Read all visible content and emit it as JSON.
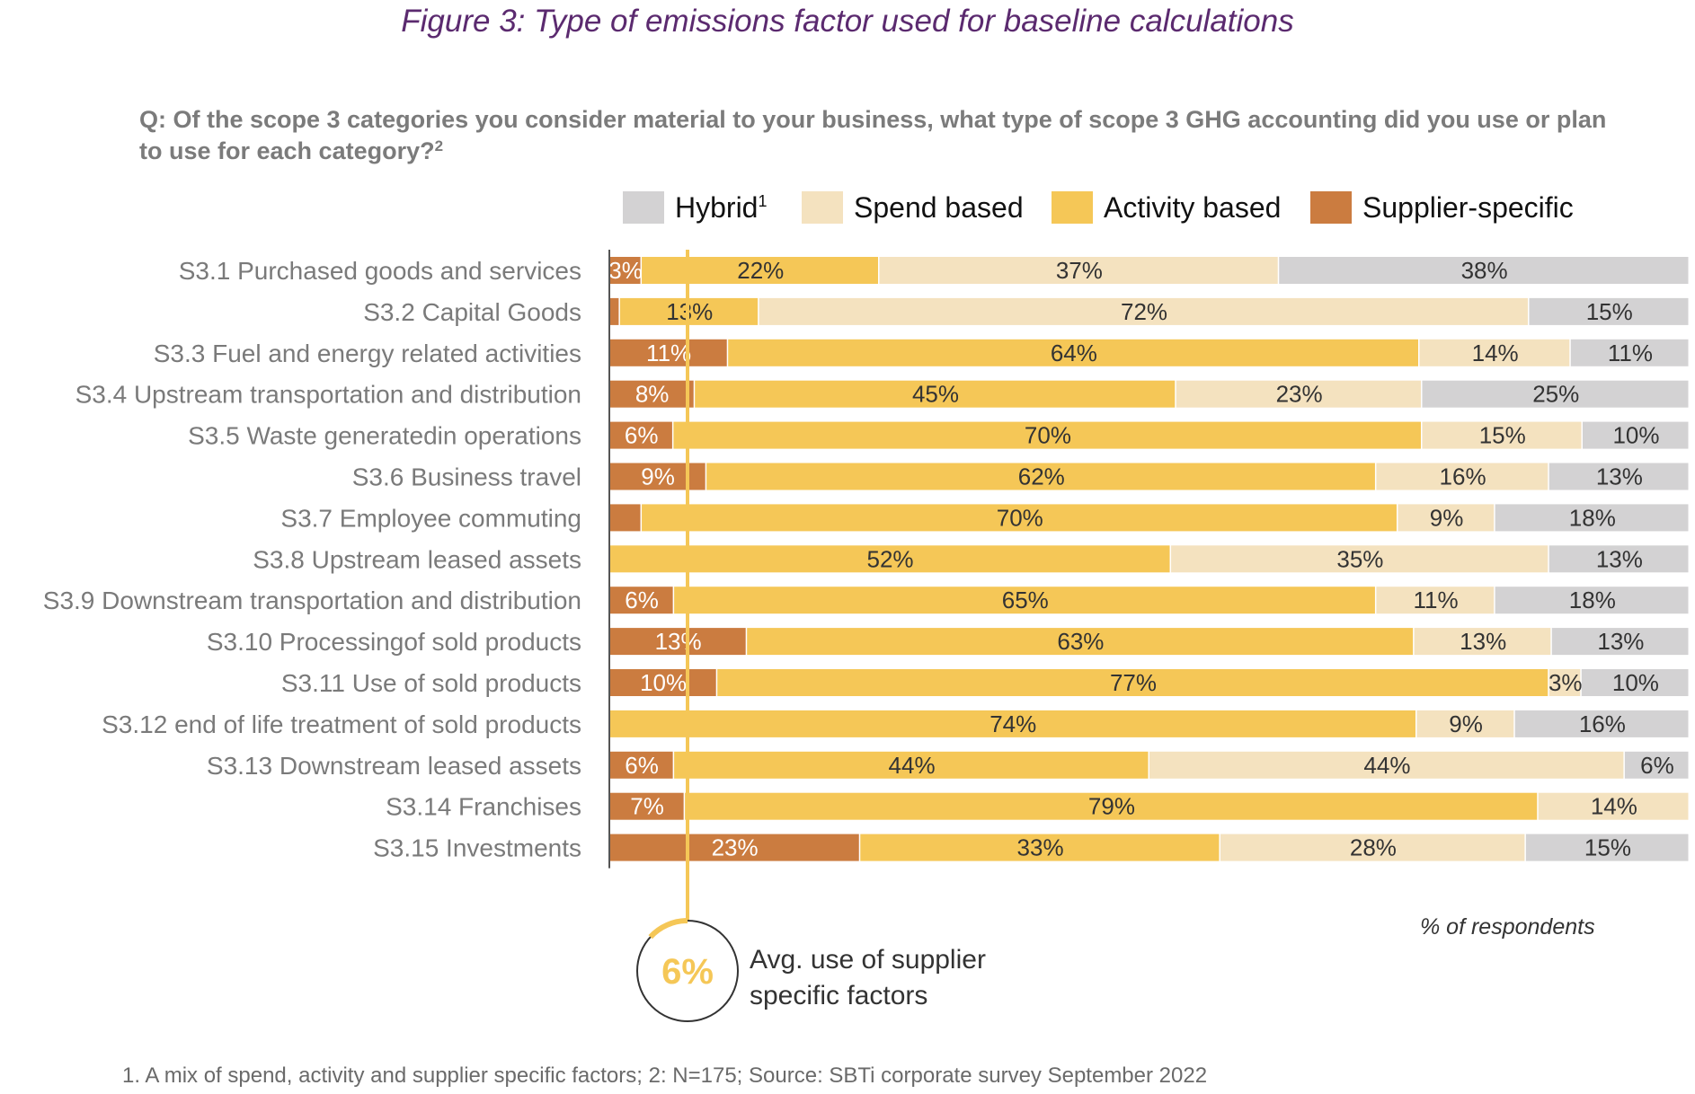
{
  "title": "Figure 3: Type of emissions factor used for baseline calculations",
  "question": {
    "text": "Q: Of the scope 3 categories you consider material to your business, what type of scope 3 GHG accounting did you use or plan to use for each category?",
    "footnote_mark": "2"
  },
  "legend": [
    {
      "key": "hybrid",
      "label": "Hybrid",
      "sup": "1",
      "color": "#d3d2d3"
    },
    {
      "key": "spend",
      "label": "Spend based",
      "sup": "",
      "color": "#f4e2bf"
    },
    {
      "key": "activity",
      "label": "Activity based",
      "sup": "",
      "color": "#f5c757"
    },
    {
      "key": "supplier",
      "label": "Supplier-specific",
      "sup": "",
      "color": "#cb7c40"
    }
  ],
  "chart_data": {
    "type": "bar",
    "orientation": "horizontal-stacked-100",
    "title": "Figure 3: Type of emissions factor used for baseline calculations",
    "xlabel": "% of respondents",
    "ylabel": "",
    "xlim": [
      0,
      100
    ],
    "grid": false,
    "legend_position": "top-right",
    "series_order": [
      "Supplier-specific",
      "Activity based",
      "Spend based",
      "Hybrid"
    ],
    "categories": [
      "S3.1 Purchased goods and services",
      "S3.2 Capital Goods",
      "S3.3 Fuel and energy related activities",
      "S3.4 Upstream transportation and distribution",
      "S3.5 Waste generatedin operations",
      "S3.6 Business travel",
      "S3.7 Employee commuting",
      "S3.8 Upstream leased assets",
      "S3.9 Downstream transportation and distribution",
      "S3.10 Processingof sold products",
      "S3.11 Use of sold products",
      "S3.12 end of life treatment of sold products",
      "S3.13 Downstream leased assets",
      "S3.14 Franchises",
      "S3.15 Investments"
    ],
    "series": [
      {
        "name": "Supplier-specific",
        "color": "#cb7c40",
        "label_color": "#ffffff",
        "values": [
          3,
          1,
          11,
          8,
          6,
          9,
          3,
          0,
          6,
          13,
          10,
          0,
          6,
          7,
          23
        ],
        "labels": [
          "3%",
          "",
          "11%",
          "8%",
          "6%",
          "9%",
          "",
          "",
          "6%",
          "13%",
          "10%",
          "",
          "6%",
          "7%",
          "23%"
        ]
      },
      {
        "name": "Activity based",
        "color": "#f5c757",
        "label_color": "#333333",
        "values": [
          22,
          13,
          64,
          45,
          70,
          62,
          70,
          52,
          65,
          63,
          77,
          74,
          44,
          79,
          33
        ],
        "labels": [
          "22%",
          "13%",
          "64%",
          "45%",
          "70%",
          "62%",
          "70%",
          "52%",
          "65%",
          "63%",
          "77%",
          "74%",
          "44%",
          "79%",
          "33%"
        ]
      },
      {
        "name": "Spend based",
        "color": "#f4e2bf",
        "label_color": "#333333",
        "values": [
          37,
          72,
          14,
          23,
          15,
          16,
          9,
          35,
          11,
          13,
          3,
          9,
          44,
          14,
          28
        ],
        "labels": [
          "37%",
          "72%",
          "14%",
          "23%",
          "15%",
          "16%",
          "9%",
          "35%",
          "11%",
          "13%",
          "3%",
          "9%",
          "44%",
          "14%",
          "28%"
        ]
      },
      {
        "name": "Hybrid",
        "color": "#d3d2d3",
        "label_color": "#333333",
        "values": [
          38,
          15,
          11,
          25,
          10,
          13,
          18,
          13,
          18,
          13,
          10,
          16,
          6,
          0,
          15
        ],
        "labels": [
          "38%",
          "15%",
          "11%",
          "25%",
          "10%",
          "13%",
          "18%",
          "13%",
          "18%",
          "13%",
          "10%",
          "16%",
          "6%",
          "",
          "15%"
        ]
      }
    ],
    "annotation": {
      "reference_value": 6,
      "value_label": "6%",
      "text_line1": "Avg. use of supplier",
      "text_line2": "specific factors",
      "color": "#f5c757"
    }
  },
  "note": "% of respondents",
  "footnote": "1. A mix of spend, activity and supplier specific factors; 2: N=175; Source: SBTi corporate survey September 2022"
}
